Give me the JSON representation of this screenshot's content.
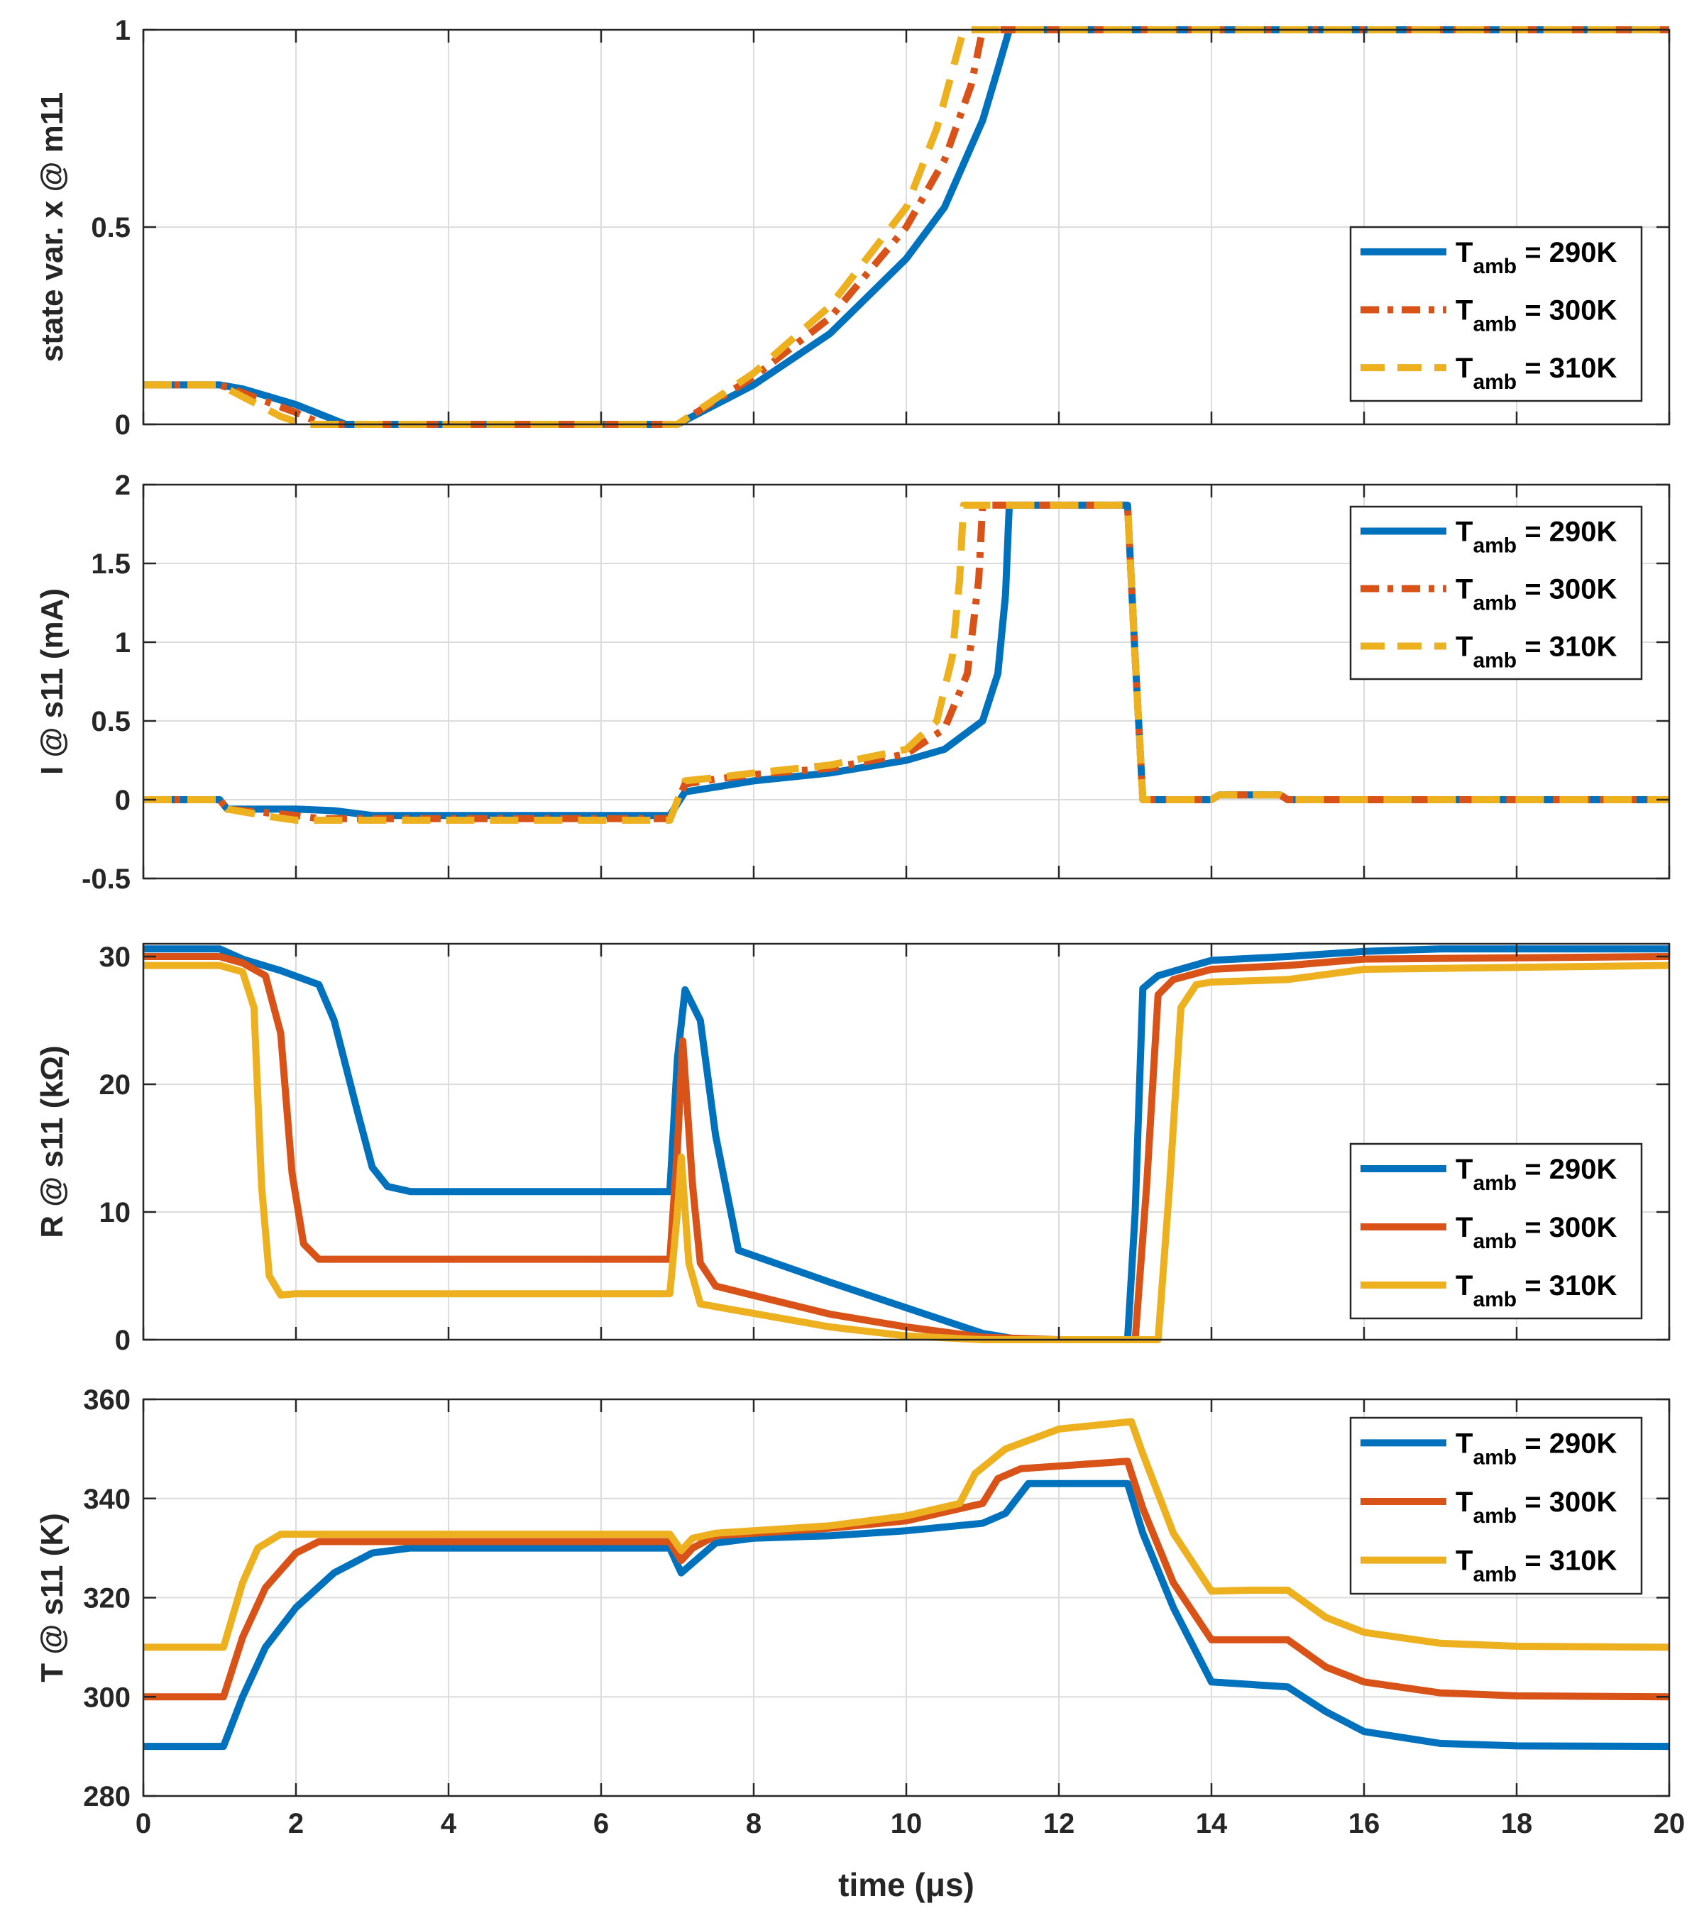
{
  "chart_data": [
    {
      "type": "line",
      "ylabel": "state var. x @ m11",
      "ylim": [
        0,
        1
      ],
      "yticks": [
        0,
        0.5,
        1
      ],
      "xlim": [
        0,
        20
      ],
      "xticks": [
        0,
        2,
        4,
        6,
        8,
        10,
        12,
        14,
        16,
        18,
        20
      ],
      "grid": true,
      "legend_position": "lower-right",
      "series": [
        {
          "name": "T_amb = 290K",
          "label_main": "T",
          "label_sub": "amb",
          "label_rest": " = 290K",
          "color": "#0072BD",
          "dash": "solid",
          "x": [
            0,
            1,
            1.3,
            2,
            2.65,
            7,
            8,
            9,
            10,
            10.5,
            11,
            11.2,
            11.35,
            20
          ],
          "y": [
            0.1,
            0.1,
            0.09,
            0.05,
            0,
            0,
            0.1,
            0.23,
            0.42,
            0.55,
            0.77,
            0.9,
            1,
            1
          ]
        },
        {
          "name": "T_amb = 300K",
          "label_main": "T",
          "label_sub": "amb",
          "label_rest": " = 300K",
          "color": "#D95319",
          "dash": "dashdot",
          "x": [
            0,
            1,
            1.3,
            2,
            2.35,
            7,
            8,
            9,
            10,
            10.5,
            10.85,
            11,
            20
          ],
          "y": [
            0.1,
            0.1,
            0.08,
            0.03,
            0,
            0,
            0.12,
            0.27,
            0.5,
            0.67,
            0.86,
            1,
            1
          ]
        },
        {
          "name": "T_amb = 310K",
          "label_main": "T",
          "label_sub": "amb",
          "label_rest": " = 310K",
          "color": "#EDB120",
          "dash": "dashed",
          "x": [
            0,
            1,
            1.3,
            1.8,
            2.1,
            7,
            8,
            9,
            10,
            10.4,
            10.75,
            20
          ],
          "y": [
            0.1,
            0.1,
            0.07,
            0.02,
            0,
            0,
            0.13,
            0.3,
            0.55,
            0.75,
            1,
            1
          ]
        }
      ]
    },
    {
      "type": "line",
      "ylabel": "I @ s11 (mA)",
      "ylim": [
        -0.5,
        2
      ],
      "yticks": [
        -0.5,
        0,
        0.5,
        1,
        1.5,
        2
      ],
      "xlim": [
        0,
        20
      ],
      "xticks": [
        0,
        2,
        4,
        6,
        8,
        10,
        12,
        14,
        16,
        18,
        20
      ],
      "grid": true,
      "legend_position": "upper-right",
      "series": [
        {
          "name": "T_amb = 290K",
          "label_main": "T",
          "label_sub": "amb",
          "label_rest": " = 290K",
          "color": "#0072BD",
          "dash": "solid",
          "x": [
            0,
            1,
            1.1,
            2,
            2.5,
            3,
            6.9,
            7.1,
            7.5,
            8,
            9,
            10,
            10.5,
            11,
            11.2,
            11.3,
            11.35,
            12.9,
            13,
            13.1,
            14,
            14.1,
            14.9,
            15,
            20
          ],
          "y": [
            0,
            0,
            -0.06,
            -0.06,
            -0.07,
            -0.1,
            -0.1,
            0.05,
            0.08,
            0.12,
            0.17,
            0.25,
            0.32,
            0.5,
            0.8,
            1.3,
            1.87,
            1.87,
            0.9,
            0,
            0,
            0.03,
            0.03,
            0,
            0
          ]
        },
        {
          "name": "T_amb = 300K",
          "label_main": "T",
          "label_sub": "amb",
          "label_rest": " = 300K",
          "color": "#D95319",
          "dash": "dashdot",
          "x": [
            0,
            1,
            1.1,
            2,
            2.3,
            6.9,
            7.1,
            7.5,
            8,
            9,
            10,
            10.5,
            10.8,
            10.95,
            11,
            12.9,
            13,
            13.1,
            14,
            14.1,
            14.9,
            15,
            20
          ],
          "y": [
            0,
            0,
            -0.06,
            -0.1,
            -0.12,
            -0.12,
            0.1,
            0.13,
            0.16,
            0.2,
            0.29,
            0.45,
            0.8,
            1.4,
            1.87,
            1.87,
            0.9,
            0,
            0,
            0.03,
            0.03,
            0,
            0
          ]
        },
        {
          "name": "T_amb = 310K",
          "label_main": "T",
          "label_sub": "amb",
          "label_rest": " = 310K",
          "color": "#EDB120",
          "dash": "dashed",
          "x": [
            0,
            1,
            1.1,
            1.7,
            2,
            6.9,
            7.1,
            7.5,
            8,
            9,
            10,
            10.4,
            10.6,
            10.7,
            10.75,
            12.9,
            13,
            13.1,
            14,
            14.1,
            14.9,
            15,
            20
          ],
          "y": [
            0,
            0,
            -0.06,
            -0.11,
            -0.13,
            -0.13,
            0.12,
            0.14,
            0.17,
            0.22,
            0.32,
            0.5,
            0.9,
            1.4,
            1.87,
            1.87,
            0.9,
            0,
            0,
            0.03,
            0.03,
            0,
            0
          ]
        }
      ]
    },
    {
      "type": "line",
      "ylabel": "R @ s11 (kΩ)",
      "ylim": [
        0,
        31
      ],
      "yticks": [
        0,
        10,
        20,
        30
      ],
      "xlim": [
        0,
        20
      ],
      "xticks": [
        0,
        2,
        4,
        6,
        8,
        10,
        12,
        14,
        16,
        18,
        20
      ],
      "grid": true,
      "legend_position": "lower-right",
      "series": [
        {
          "name": "T_amb = 290K",
          "label_main": "T",
          "label_sub": "amb",
          "label_rest": " = 290K",
          "color": "#0072BD",
          "dash": "solid",
          "x": [
            0,
            1,
            1.3,
            1.8,
            2.3,
            2.5,
            2.8,
            3.0,
            3.2,
            3.5,
            6.9,
            7.0,
            7.1,
            7.3,
            7.5,
            7.8,
            9,
            10,
            11,
            11.5,
            12.9,
            13.0,
            13.1,
            13.3,
            14,
            15,
            16,
            17,
            20
          ],
          "y": [
            30.6,
            30.6,
            29.8,
            28.9,
            27.8,
            25.0,
            18.0,
            13.5,
            12.0,
            11.6,
            11.6,
            22.0,
            27.4,
            25.0,
            16.0,
            7.0,
            4.5,
            2.5,
            0.5,
            0,
            0,
            10.0,
            27.5,
            28.5,
            29.7,
            30.0,
            30.4,
            30.6,
            30.6
          ]
        },
        {
          "name": "T_amb = 300K",
          "label_main": "T",
          "label_sub": "amb",
          "label_rest": " = 300K",
          "color": "#D95319",
          "dash": "solid",
          "x": [
            0,
            1,
            1.3,
            1.6,
            1.8,
            1.95,
            2.1,
            2.3,
            6.9,
            7.0,
            7.07,
            7.2,
            7.3,
            7.5,
            9,
            10,
            11,
            12,
            13.0,
            13.15,
            13.3,
            13.5,
            14,
            15,
            16,
            20
          ],
          "y": [
            30.0,
            30.0,
            29.5,
            28.5,
            24.0,
            13.0,
            7.5,
            6.3,
            6.3,
            15.0,
            23.4,
            12.0,
            6.0,
            4.2,
            2.0,
            1.0,
            0.2,
            0,
            0,
            12.0,
            27.0,
            28.2,
            29.0,
            29.3,
            29.8,
            30.0
          ]
        },
        {
          "name": "T_amb = 310K",
          "label_main": "T",
          "label_sub": "amb",
          "label_rest": " = 310K",
          "color": "#EDB120",
          "dash": "solid",
          "x": [
            0,
            1,
            1.3,
            1.45,
            1.55,
            1.65,
            1.8,
            2.0,
            6.9,
            7.0,
            7.05,
            7.15,
            7.3,
            9,
            10,
            11,
            13.3,
            13.45,
            13.6,
            13.8,
            14,
            15,
            16,
            20
          ],
          "y": [
            29.3,
            29.3,
            28.8,
            26.0,
            12.0,
            5.0,
            3.5,
            3.6,
            3.6,
            10.0,
            14.3,
            6.0,
            2.8,
            1.0,
            0.3,
            0,
            0,
            12.0,
            26.0,
            27.8,
            28.0,
            28.2,
            29.0,
            29.3
          ]
        }
      ]
    },
    {
      "type": "line",
      "ylabel": "T @ s11 (K)",
      "xlabel": "time (μs)",
      "ylim": [
        280,
        360
      ],
      "yticks": [
        280,
        300,
        320,
        340,
        360
      ],
      "xlim": [
        0,
        20
      ],
      "xticks": [
        0,
        2,
        4,
        6,
        8,
        10,
        12,
        14,
        16,
        18,
        20
      ],
      "grid": true,
      "legend_position": "upper-right",
      "series": [
        {
          "name": "T_amb = 290K",
          "label_main": "T",
          "label_sub": "amb",
          "label_rest": " = 290K",
          "color": "#0072BD",
          "dash": "solid",
          "x": [
            0,
            1.05,
            1.3,
            1.6,
            2.0,
            2.5,
            3.0,
            3.5,
            6.9,
            7.05,
            7.2,
            7.5,
            8,
            9,
            10,
            11,
            11.3,
            11.6,
            12.9,
            13.1,
            13.5,
            14,
            14.5,
            15,
            15.5,
            16,
            17,
            18,
            20
          ],
          "y": [
            290,
            290,
            300,
            310,
            318,
            325,
            329,
            330,
            330,
            325,
            327,
            331,
            332,
            332.5,
            333.5,
            335,
            337,
            343,
            343,
            333,
            318,
            303,
            302.5,
            302,
            297,
            293,
            290.6,
            290.1,
            290
          ]
        },
        {
          "name": "T_amb = 300K",
          "label_main": "T",
          "label_sub": "amb",
          "label_rest": " = 300K",
          "color": "#D95319",
          "dash": "solid",
          "x": [
            0,
            1.05,
            1.3,
            1.6,
            2.0,
            2.3,
            6.9,
            7.05,
            7.2,
            7.5,
            8,
            9,
            10,
            11,
            11.2,
            11.5,
            12.9,
            13.1,
            13.5,
            14,
            14.5,
            15,
            15.5,
            16,
            17,
            18,
            20
          ],
          "y": [
            300,
            300,
            312,
            322,
            329,
            331.3,
            331.3,
            327.5,
            330,
            332.5,
            333,
            334,
            335.5,
            339,
            344,
            346,
            347.5,
            338,
            323,
            311.5,
            311.5,
            311.5,
            306,
            303,
            300.8,
            300.2,
            300
          ]
        },
        {
          "name": "T_amb = 310K",
          "label_main": "T",
          "label_sub": "amb",
          "label_rest": " = 310K",
          "color": "#EDB120",
          "dash": "solid",
          "x": [
            0,
            1.05,
            1.3,
            1.5,
            1.8,
            6.9,
            7.05,
            7.2,
            7.5,
            8,
            9,
            10,
            10.7,
            10.9,
            11.3,
            12,
            12.95,
            13.1,
            13.5,
            14,
            14.5,
            15,
            15.5,
            16,
            17,
            18,
            20
          ],
          "y": [
            310,
            310,
            323,
            330,
            332.8,
            332.8,
            329.5,
            332,
            333,
            333.5,
            334.5,
            336.5,
            339,
            345,
            350,
            354,
            355.5,
            349,
            333,
            321.3,
            321.5,
            321.5,
            316,
            313,
            310.8,
            310.2,
            310
          ]
        }
      ]
    }
  ]
}
